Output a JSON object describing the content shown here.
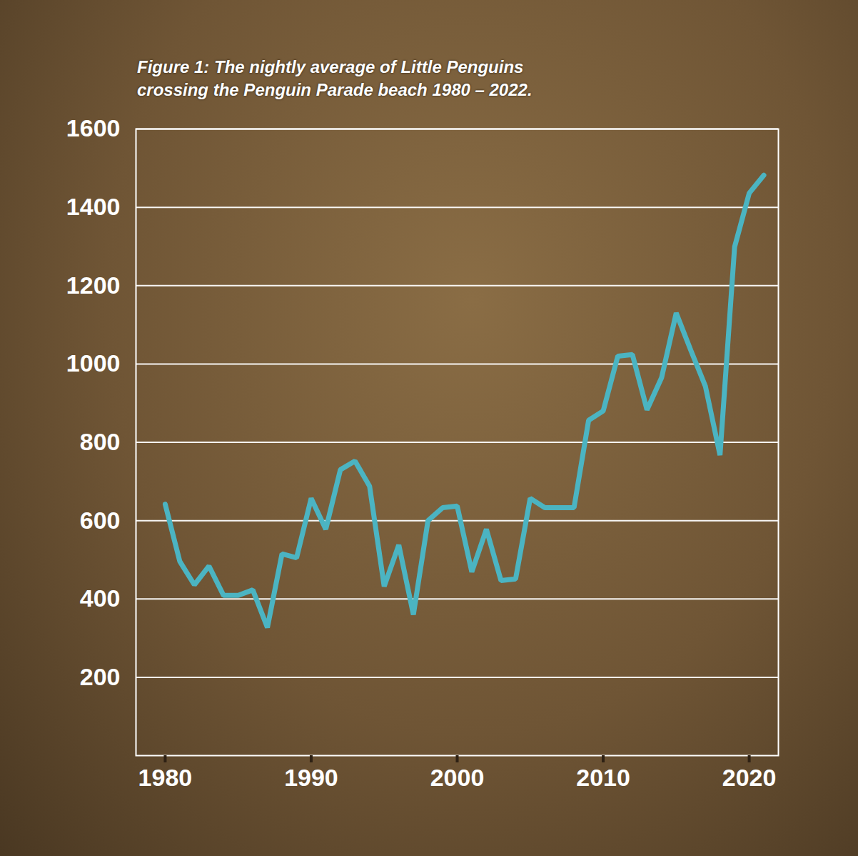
{
  "chart_data": {
    "type": "line",
    "title": "Figure 1: The nightly average of Little Penguins crossing the Penguin Parade beach 1980 – 2022.",
    "x": [
      1980,
      1981,
      1982,
      1983,
      1984,
      1985,
      1986,
      1987,
      1988,
      1989,
      1990,
      1991,
      1992,
      1993,
      1994,
      1995,
      1996,
      1997,
      1998,
      1999,
      2000,
      2001,
      2002,
      2003,
      2004,
      2005,
      2006,
      2007,
      2008,
      2009,
      2010,
      2011,
      2012,
      2013,
      2014,
      2015,
      2016,
      2017,
      2018,
      2019,
      2020,
      2021
    ],
    "values": [
      642,
      496,
      436,
      484,
      409,
      409,
      423,
      327,
      515,
      505,
      657,
      578,
      730,
      752,
      688,
      432,
      538,
      360,
      600,
      633,
      637,
      469,
      578,
      447,
      451,
      657,
      633,
      633,
      633,
      856,
      880,
      1020,
      1024,
      883,
      965,
      1130,
      1035,
      943,
      767,
      1299,
      1436,
      1482
    ],
    "color": "#4bb4c2",
    "xlim": [
      1978,
      2022
    ],
    "xticks": [
      1980,
      1990,
      2000,
      2010,
      2020
    ],
    "ylim": [
      0,
      1600
    ],
    "yticks": [
      200,
      400,
      600,
      800,
      1000,
      1200,
      1400,
      1600
    ],
    "grid": true
  }
}
